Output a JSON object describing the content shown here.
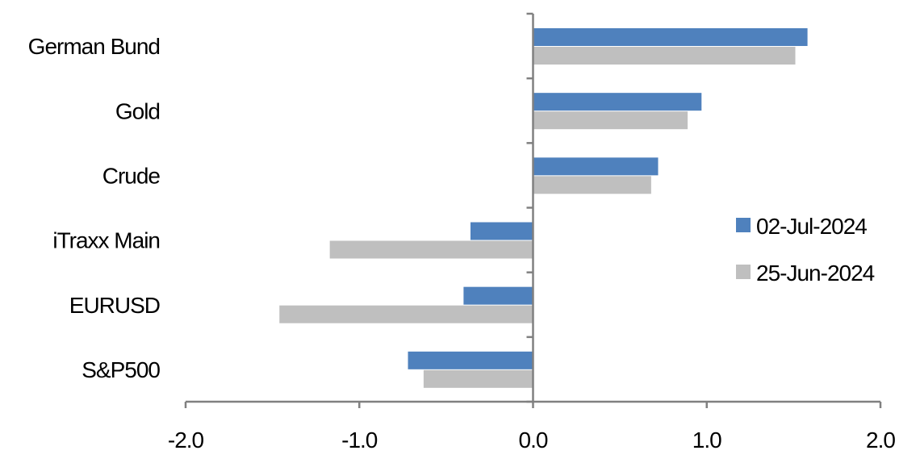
{
  "chart_data": {
    "type": "bar",
    "orientation": "horizontal",
    "categories": [
      "German Bund",
      "Gold",
      "Crude",
      "iTraxx Main",
      "EURUSD",
      "S&P500"
    ],
    "series": [
      {
        "name": "02-Jul-2024",
        "color": "#4F81BD",
        "values": [
          1.58,
          0.97,
          0.72,
          -0.36,
          -0.4,
          -0.72
        ]
      },
      {
        "name": "25-Jun-2024",
        "color": "#BFBFBF",
        "values": [
          1.51,
          0.89,
          0.68,
          -1.17,
          -1.46,
          -0.63
        ]
      }
    ],
    "xlim": [
      -2.0,
      2.0
    ],
    "xticks": [
      "-2.0",
      "-1.0",
      "0.0",
      "1.0",
      "2.0"
    ],
    "xtick_values": [
      -2,
      -1,
      0,
      1,
      2
    ],
    "grid": false,
    "legend_position": "right"
  }
}
